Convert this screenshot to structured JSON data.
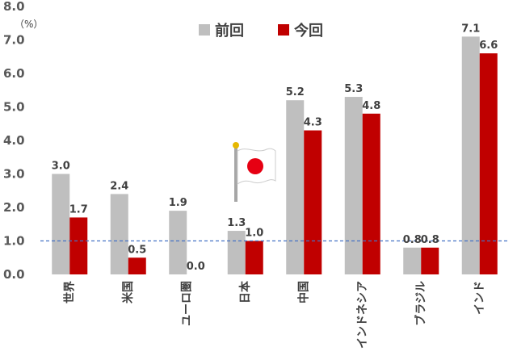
{
  "chart_data": {
    "type": "bar",
    "unit": "（%）",
    "categories": [
      "世界",
      "米国",
      "ユーロ圏",
      "日本",
      "中国",
      "インドネシア",
      "ブラジル",
      "インド"
    ],
    "series": [
      {
        "name": "前回",
        "color": "#bfbfbf",
        "values": [
          3.0,
          2.4,
          1.9,
          1.3,
          5.2,
          5.3,
          0.8,
          7.1
        ],
        "labels": [
          "3.0",
          "2.4",
          "1.9",
          "1.3",
          "5.2",
          "5.3",
          "0.8",
          "7.1"
        ]
      },
      {
        "name": "今回",
        "color": "#c00000",
        "values": [
          1.7,
          0.5,
          0.0,
          1.0,
          4.3,
          4.8,
          0.8,
          6.6
        ],
        "labels": [
          "1.7",
          "0.5",
          "0.0",
          "1.0",
          "4.3",
          "4.8",
          "0.8",
          "6.6"
        ]
      }
    ],
    "ylim": [
      0,
      8
    ],
    "yticks": [
      "0.0",
      "1.0",
      "2.0",
      "3.0",
      "4.0",
      "5.0",
      "6.0",
      "7.0",
      "8.0"
    ],
    "reference_line": {
      "value": 1.0,
      "style": "dashed",
      "color": "#4472c4"
    },
    "legend_position": "top-center",
    "grid": false,
    "flag_icon": "japan-flag-icon"
  }
}
